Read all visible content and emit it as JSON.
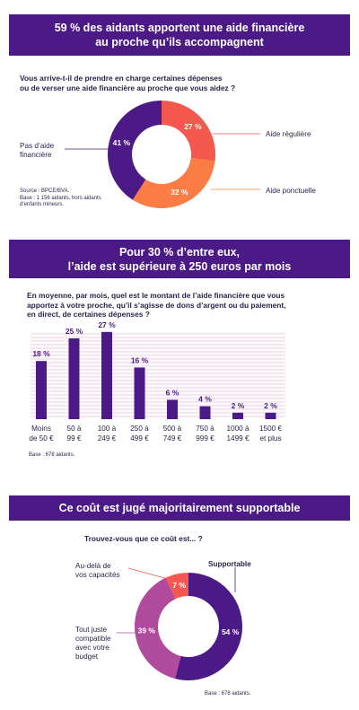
{
  "section1": {
    "title_line1": "59 % des aidants apportent une aide financière",
    "title_line2": "au proche qu’ils accompagnent",
    "question_line1": "Vous arrive-t-il de prendre en charge certaines dépenses",
    "question_line2": "ou de verser une aide financière au proche que vous aidez ?",
    "source_line1": "Source : BPCE/BVA.",
    "source_line2": "Base : 1 156 aidants, hors aidants",
    "source_line3": "d’enfants mineurs.",
    "labels": {
      "pas_line1": "Pas d’aide",
      "pas_line2": "financière",
      "reguliere": "Aide régulière",
      "ponctuelle": "Aide ponctuelle"
    }
  },
  "section2": {
    "title_line1": "Pour 30 % d’entre eux,",
    "title_line2": "l’aide est supérieure à 250 euros par mois",
    "question_line1": "En moyenne, par mois, quel est le montant de l’aide financière que vous",
    "question_line2": "apportez à votre proche, qu’il s’agisse de dons d’argent ou du paiement,",
    "question_line3": "en direct, de certaines dépenses ?",
    "base": "Base : 678 aidants."
  },
  "section3": {
    "title": "Ce coût est jugé majoritairement supportable",
    "question": "Trouvez-vous que ce coût est... ?",
    "labels": {
      "supportable": "Supportable",
      "audela_line1": "Au-delà de",
      "audela_line2": "vos capacités",
      "juste_line1": "Tout juste",
      "juste_line2": "compatible",
      "juste_line3": "avec votre",
      "juste_line4": "budget"
    },
    "base": "Base : 678 aidants."
  },
  "colors": {
    "purple": "#4b1a86",
    "red": "#f4584f",
    "orange": "#fb7d45",
    "magenta": "#b04a9c",
    "track": "#f3e6ee",
    "text": "#2a1f45"
  },
  "chart_data": [
    {
      "type": "pie",
      "donut": true,
      "labels": [
        "Pas d’aide financière",
        "Aide régulière",
        "Aide ponctuelle"
      ],
      "values": [
        41,
        27,
        32
      ],
      "value_labels": [
        "41 %",
        "27 %",
        "32 %"
      ],
      "colors": [
        "#4b1a86",
        "#f4584f",
        "#fb7d45"
      ]
    },
    {
      "type": "bar",
      "categories_line1": [
        "Moins",
        "50 à",
        "100 à",
        "250 à",
        "500 à",
        "750 à",
        "1000 à",
        "1500 €"
      ],
      "categories_line2": [
        "de 50 €",
        "99 €",
        "249 €",
        "499 €",
        "749 €",
        "999 €",
        "1499 €",
        "et plus"
      ],
      "values": [
        18,
        25,
        27,
        16,
        6,
        4,
        2,
        2
      ],
      "value_labels": [
        "18 %",
        "25 %",
        "27 %",
        "16 %",
        "6 %",
        "4 %",
        "2 %",
        "2 %"
      ],
      "ylim": [
        0,
        30
      ],
      "color": "#4b1a86"
    },
    {
      "type": "pie",
      "donut": true,
      "labels": [
        "Supportable",
        "Tout juste compatible avec votre budget",
        "Au-delà de vos capacités"
      ],
      "values": [
        54,
        39,
        7
      ],
      "value_labels": [
        "54 %",
        "39 %",
        "7 %"
      ],
      "colors": [
        "#4b1a86",
        "#b04a9c",
        "#f4584f"
      ]
    }
  ]
}
